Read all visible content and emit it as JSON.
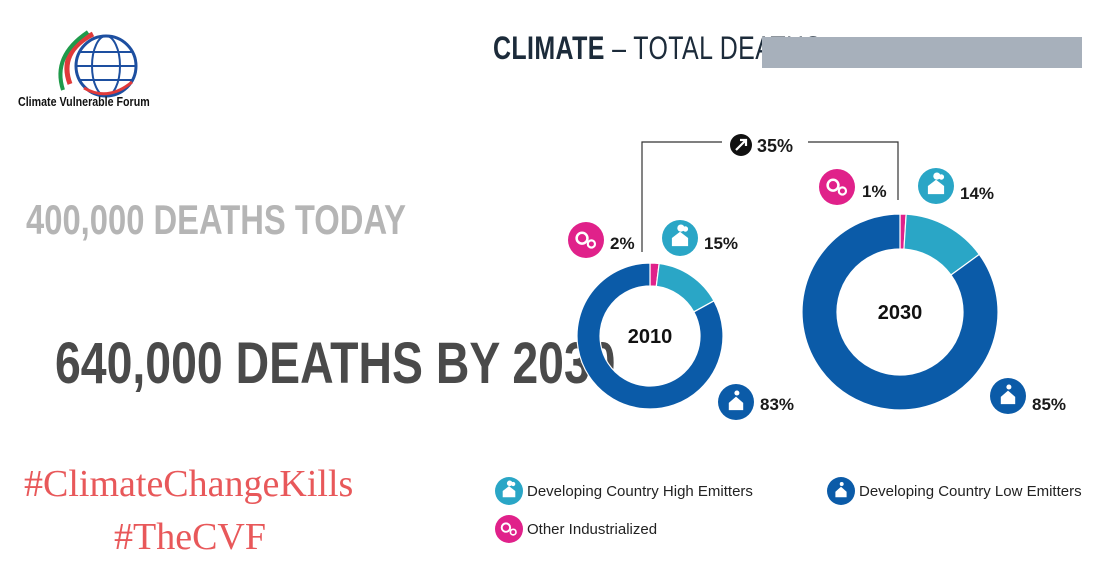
{
  "logo": {
    "caption": "Climate Vulnerable Forum"
  },
  "header": {
    "title_strong": "CLIMATE",
    "title_rest": " – TOTAL DEATHS"
  },
  "stats": {
    "today": "400,000 DEATHS TODAY",
    "by_2030": "640,000 DEATHS BY 2030"
  },
  "hashtags": [
    "#ClimateChangeKills",
    "#TheCVF"
  ],
  "colors": {
    "high_emitters": "#2aa6c6",
    "low_emitters": "#0b5ba8",
    "other_industrialized": "#e0218a",
    "header_bar": "#a7b0bb"
  },
  "chart_data": {
    "type": "pie",
    "series_order": [
      "Other Industrialized",
      "Developing Country High Emitters",
      "Developing Country Low Emitters"
    ],
    "charts": [
      {
        "label": "2010",
        "values": [
          2,
          15,
          83
        ],
        "value_labels": [
          "2%",
          "15%",
          "83%"
        ]
      },
      {
        "label": "2030",
        "values": [
          1,
          14,
          85
        ],
        "value_labels": [
          "1%",
          "14%",
          "85%"
        ]
      }
    ],
    "increase_label": "35%",
    "legend": [
      {
        "name": "Developing Country High Emitters",
        "color": "#2aa6c6",
        "icon": "house-smoke-icon"
      },
      {
        "name": "Developing Country Low Emitters",
        "color": "#0b5ba8",
        "icon": "small-house-icon"
      },
      {
        "name": "Other Industrialized",
        "color": "#e0218a",
        "icon": "gears-icon"
      }
    ]
  }
}
